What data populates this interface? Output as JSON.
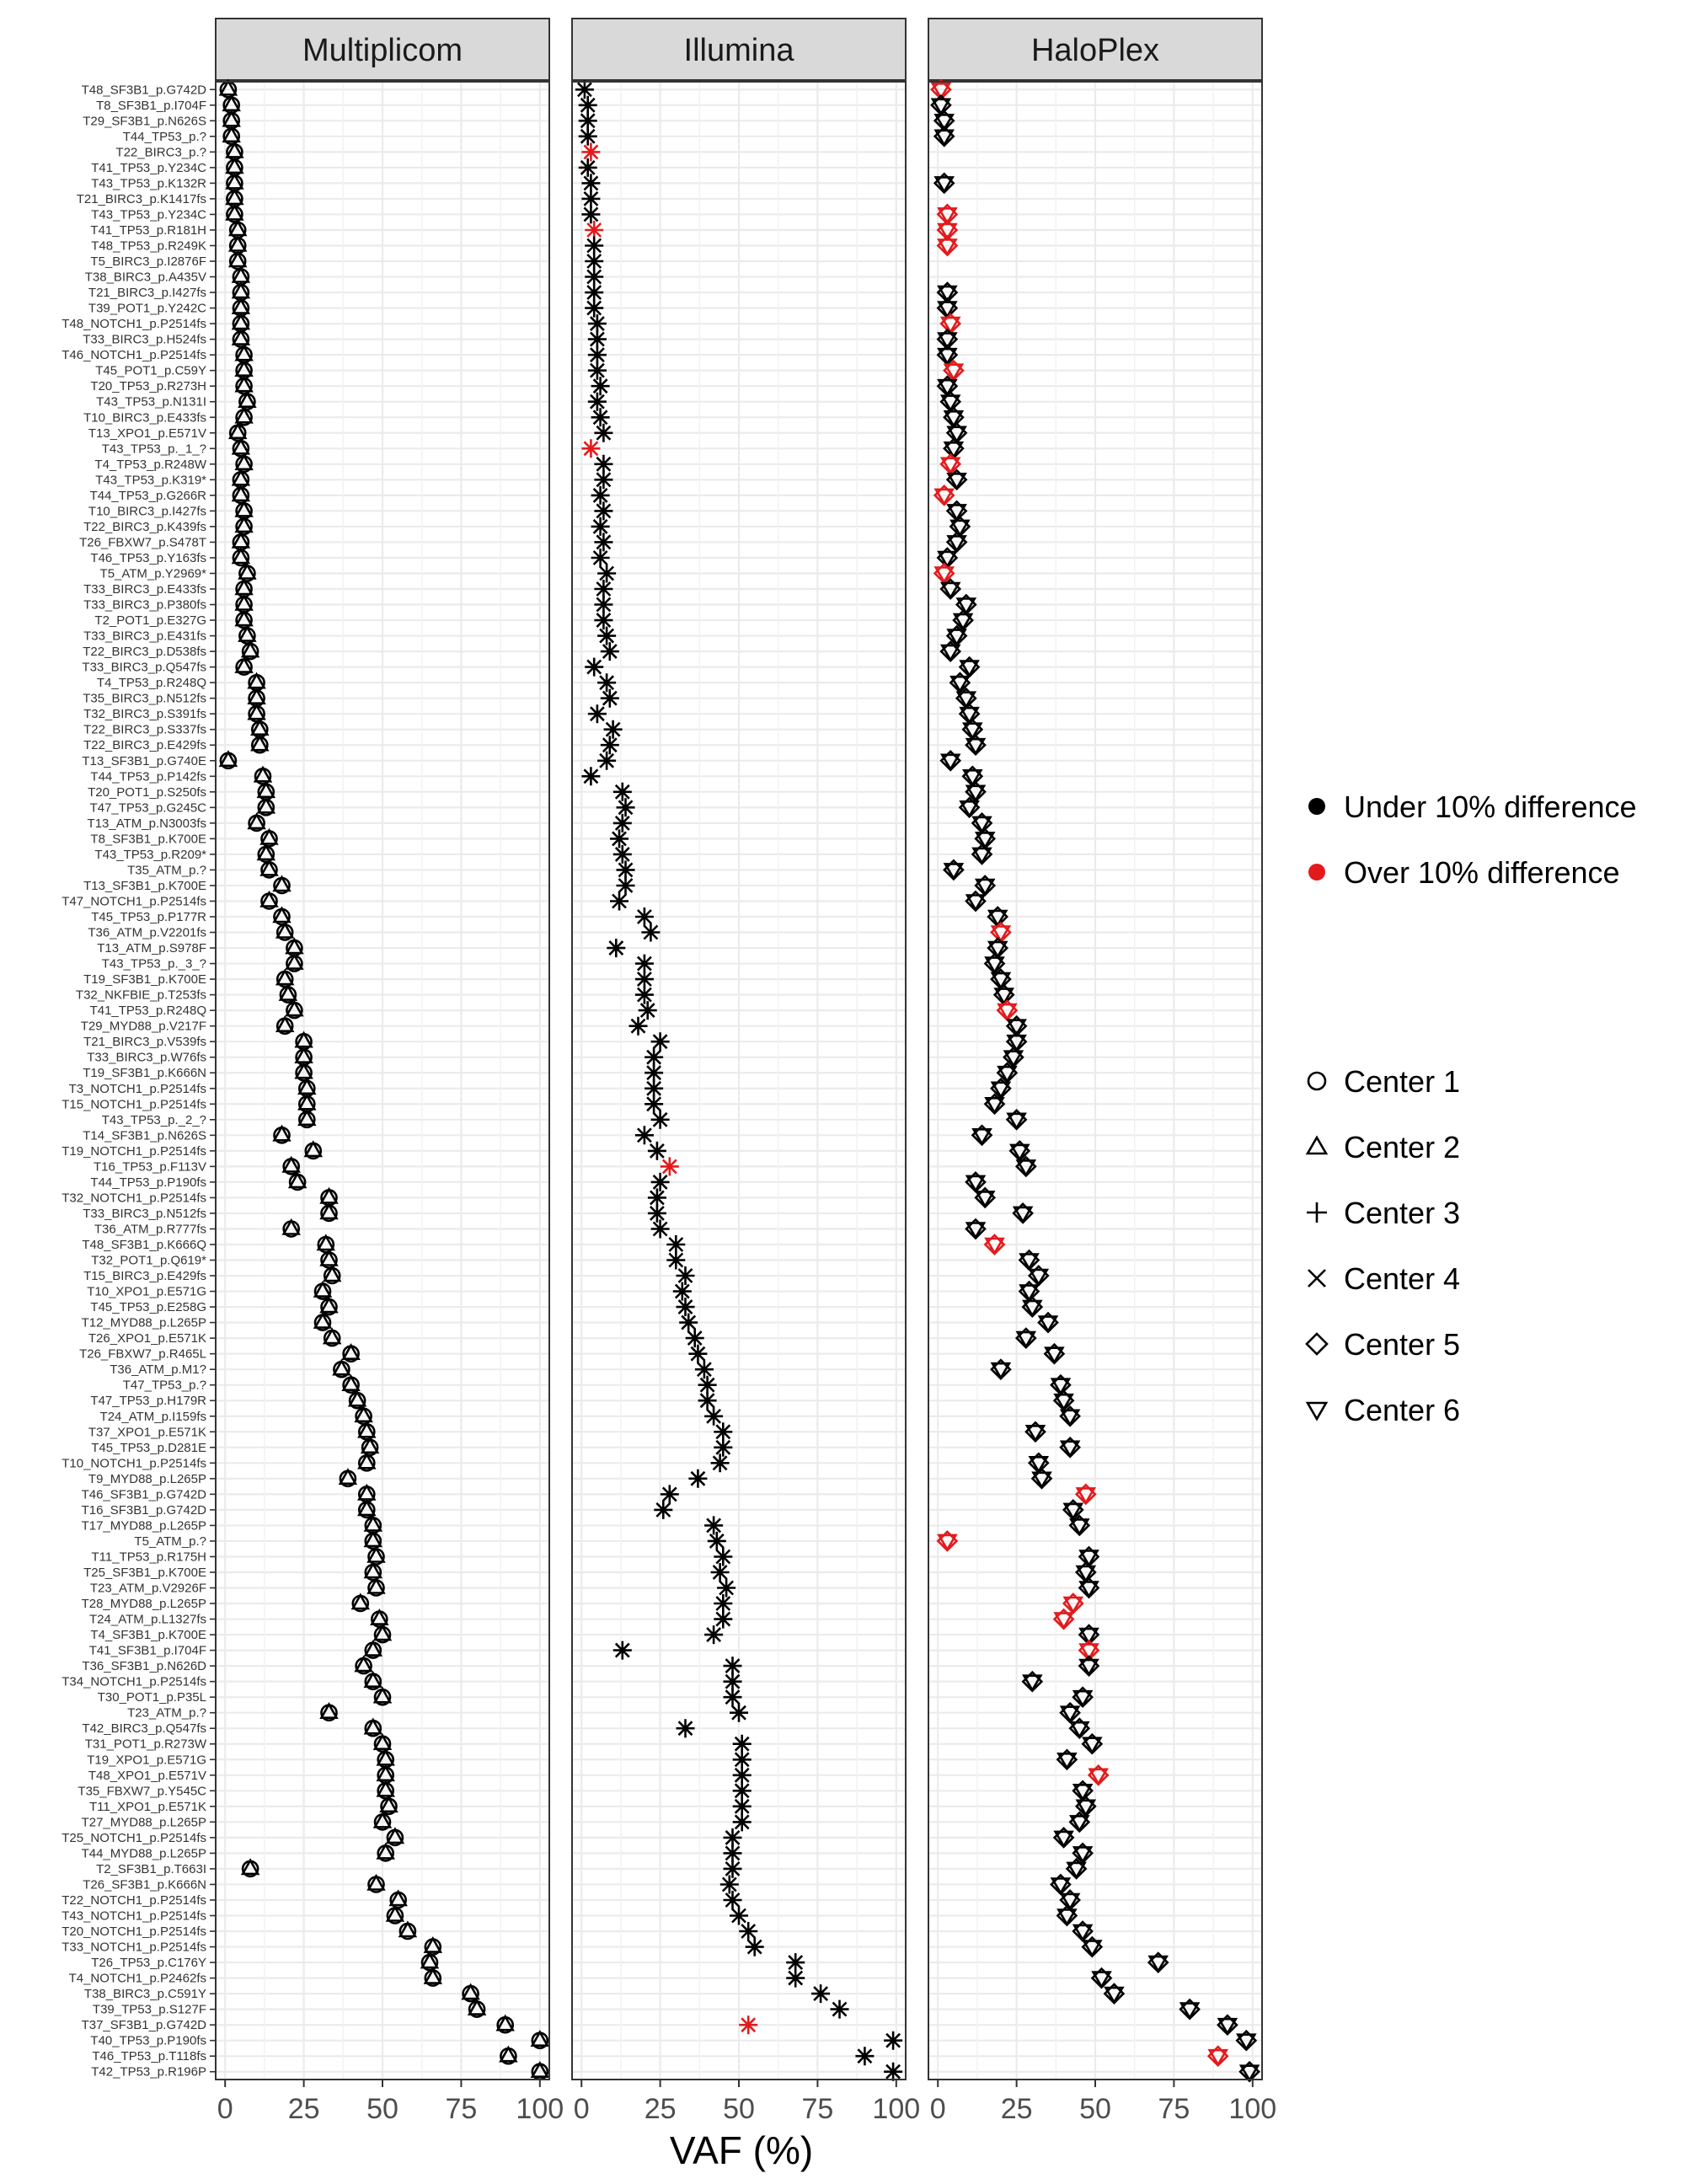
{
  "chart_data": {
    "type": "scatter",
    "panels": [
      "Multiplicom",
      "Illumina",
      "HaloPlex"
    ],
    "xlabel": "VAF (%)",
    "xlim": [
      -3,
      103
    ],
    "xticks": [
      0,
      25,
      50,
      75,
      100
    ],
    "grid": true,
    "legend_position": "right",
    "legend_color": {
      "items": [
        {
          "label": "Under 10% difference",
          "color": "#000000"
        },
        {
          "label": "Over 10% difference",
          "color": "#e31a1c"
        }
      ]
    },
    "legend_shape": {
      "items": [
        {
          "label": "Center 1",
          "shape": "circle"
        },
        {
          "label": "Center 2",
          "shape": "triangle"
        },
        {
          "label": "Center 3",
          "shape": "plus"
        },
        {
          "label": "Center 4",
          "shape": "cross"
        },
        {
          "label": "Center 5",
          "shape": "diamond"
        },
        {
          "label": "Center 6",
          "shape": "triangle-down"
        }
      ]
    },
    "variants": [
      {
        "label": "T48_SF3B1_p.G742D",
        "m": 1,
        "i": 1,
        "h": 1,
        "hr": true
      },
      {
        "label": "T8_SF3B1_p.I704F",
        "m": 2,
        "i": 2,
        "h": 1
      },
      {
        "label": "T29_SF3B1_p.N626S",
        "m": 2,
        "i": 2,
        "h": 2
      },
      {
        "label": "T44_TP53_p.?",
        "m": 2,
        "i": 2,
        "h": 2
      },
      {
        "label": "T22_BIRC3_p.?",
        "m": 3,
        "i": 3,
        "ir": true,
        "h": null
      },
      {
        "label": "T41_TP53_p.Y234C",
        "m": 3,
        "i": 2,
        "h": null
      },
      {
        "label": "T43_TP53_p.K132R",
        "m": 3,
        "i": 3,
        "h": 2
      },
      {
        "label": "T21_BIRC3_p.K1417fs",
        "m": 3,
        "i": 3,
        "h": null
      },
      {
        "label": "T43_TP53_p.Y234C",
        "m": 3,
        "i": 3,
        "h": 3,
        "hr": true
      },
      {
        "label": "T41_TP53_p.R181H",
        "m": 4,
        "i": 4,
        "ir": true,
        "h": 3,
        "hr": true
      },
      {
        "label": "T48_TP53_p.R249K",
        "m": 4,
        "i": 4,
        "h": 3,
        "hr": true
      },
      {
        "label": "T5_BIRC3_p.I2876F",
        "m": 4,
        "i": 4,
        "h": null
      },
      {
        "label": "T38_BIRC3_p.A435V",
        "m": 5,
        "i": 4,
        "h": null
      },
      {
        "label": "T21_BIRC3_p.I427fs",
        "m": 5,
        "i": 4,
        "h": 3
      },
      {
        "label": "T39_POT1_p.Y242C",
        "m": 5,
        "i": 4,
        "h": 3
      },
      {
        "label": "T48_NOTCH1_p.P2514fs",
        "m": 5,
        "i": 5,
        "h": 4,
        "hr": true
      },
      {
        "label": "T33_BIRC3_p.H524fs",
        "m": 5,
        "i": 5,
        "h": 3
      },
      {
        "label": "T46_NOTCH1_p.P2514fs",
        "m": 6,
        "i": 5,
        "h": 3
      },
      {
        "label": "T45_POT1_p.C59Y",
        "m": 6,
        "i": 5,
        "h": 5,
        "hr": true
      },
      {
        "label": "T20_TP53_p.R273H",
        "m": 6,
        "i": 6,
        "h": 3
      },
      {
        "label": "T43_TP53_p.N131I",
        "m": 7,
        "i": 5,
        "h": 4
      },
      {
        "label": "T10_BIRC3_p.E433fs",
        "m": 6,
        "i": 6,
        "h": 5
      },
      {
        "label": "T13_XPO1_p.E571V",
        "m": 4,
        "i": 7,
        "h": 6
      },
      {
        "label": "T43_TP53_p._1_?",
        "m": 5,
        "i": 3,
        "ir": true,
        "h": 5
      },
      {
        "label": "T4_TP53_p.R248W",
        "m": 6,
        "i": 7,
        "h": 4,
        "hr": true
      },
      {
        "label": "T43_TP53_p.K319*",
        "m": 5,
        "i": 7,
        "h": 6
      },
      {
        "label": "T44_TP53_p.G266R",
        "m": 5,
        "i": 6,
        "h": 2,
        "hr": true
      },
      {
        "label": "T10_BIRC3_p.I427fs",
        "m": 6,
        "i": 7,
        "h": 6
      },
      {
        "label": "T22_BIRC3_p.K439fs",
        "m": 6,
        "i": 6,
        "h": 7
      },
      {
        "label": "T26_FBXW7_p.S478T",
        "m": 5,
        "i": 7,
        "h": 6
      },
      {
        "label": "T46_TP53_p.Y163fs",
        "m": 5,
        "i": 6,
        "h": 3
      },
      {
        "label": "T5_ATM_p.Y2969*",
        "m": 7,
        "i": 8,
        "h": 2,
        "hr": true
      },
      {
        "label": "T33_BIRC3_p.E433fs",
        "m": 6,
        "i": 7,
        "h": 4
      },
      {
        "label": "T33_BIRC3_p.P380fs",
        "m": 6,
        "i": 7,
        "h": 9
      },
      {
        "label": "T2_POT1_p.E327G",
        "m": 6,
        "i": 7,
        "h": 8
      },
      {
        "label": "T33_BIRC3_p.E431fs",
        "m": 7,
        "i": 8,
        "h": 6
      },
      {
        "label": "T22_BIRC3_p.D538fs",
        "m": 8,
        "i": 9,
        "h": 4
      },
      {
        "label": "T33_BIRC3_p.Q547fs",
        "m": 6,
        "i": 4,
        "h": 10
      },
      {
        "label": "T4_TP53_p.R248Q",
        "m": 10,
        "i": 8,
        "h": 7
      },
      {
        "label": "T35_BIRC3_p.N512fs",
        "m": 10,
        "i": 9,
        "h": 9
      },
      {
        "label": "T32_BIRC3_p.S391fs",
        "m": 10,
        "i": 5,
        "h": 10
      },
      {
        "label": "T22_BIRC3_p.S337fs",
        "m": 11,
        "i": 10,
        "h": 11
      },
      {
        "label": "T22_BIRC3_p.E429fs",
        "m": 11,
        "i": 9,
        "h": 12
      },
      {
        "label": "T13_SF3B1_p.G740E",
        "m": 1,
        "i": 8,
        "h": 4
      },
      {
        "label": "T44_TP53_p.P142fs",
        "m": 12,
        "i": 3,
        "h": 11
      },
      {
        "label": "T20_POT1_p.S250fs",
        "m": 13,
        "i": 13,
        "h": 12
      },
      {
        "label": "T47_TP53_p.G245C",
        "m": 13,
        "i": 14,
        "h": 10
      },
      {
        "label": "T13_ATM_p.N3003fs",
        "m": 10,
        "i": 13,
        "h": 14
      },
      {
        "label": "T8_SF3B1_p.K700E",
        "m": 14,
        "i": 12,
        "h": 15
      },
      {
        "label": "T43_TP53_p.R209*",
        "m": 13,
        "i": 13,
        "h": 14
      },
      {
        "label": "T35_ATM_p.?",
        "m": 14,
        "i": 14,
        "h": 5
      },
      {
        "label": "T13_SF3B1_p.K700E",
        "m": 18,
        "i": 14,
        "h": 15
      },
      {
        "label": "T47_NOTCH1_p.P2514fs",
        "m": 14,
        "i": 12,
        "h": 12
      },
      {
        "label": "T45_TP53_p.P177R",
        "m": 18,
        "i": 20,
        "h": 19
      },
      {
        "label": "T36_ATM_p.V2201fs",
        "m": 19,
        "i": 22,
        "h": 20,
        "hr": true
      },
      {
        "label": "T13_ATM_p.S978F",
        "m": 22,
        "i": 11,
        "h": 19
      },
      {
        "label": "T43_TP53_p._3_?",
        "m": 22,
        "i": 20,
        "h": 18
      },
      {
        "label": "T19_SF3B1_p.K700E",
        "m": 19,
        "i": 20,
        "h": 20
      },
      {
        "label": "T32_NKFBIE_p.T253fs",
        "m": 20,
        "i": 20,
        "h": 21
      },
      {
        "label": "T41_TP53_p.R248Q",
        "m": 22,
        "i": 21,
        "h": 22,
        "hr": true
      },
      {
        "label": "T29_MYD88_p.V217F",
        "m": 19,
        "i": 18,
        "h": 25
      },
      {
        "label": "T21_BIRC3_p.V539fs",
        "m": 25,
        "i": 25,
        "h": 25
      },
      {
        "label": "T33_BIRC3_p.W76fs",
        "m": 25,
        "i": 23,
        "h": 24
      },
      {
        "label": "T19_SF3B1_p.K666N",
        "m": 25,
        "i": 23,
        "h": 22
      },
      {
        "label": "T3_NOTCH1_p.P2514fs",
        "m": 26,
        "i": 23,
        "h": 20
      },
      {
        "label": "T15_NOTCH1_p.P2514fs",
        "m": 26,
        "i": 23,
        "h": 18
      },
      {
        "label": "T43_TP53_p._2_?",
        "m": 26,
        "i": 25,
        "h": 25
      },
      {
        "label": "T14_SF3B1_p.N626S",
        "m": 18,
        "i": 20,
        "h": 14
      },
      {
        "label": "T19_NOTCH1_p.P2514fs",
        "m": 28,
        "i": 24,
        "h": 26
      },
      {
        "label": "T16_TP53_p.F113V",
        "m": 21,
        "i": 28,
        "ir": true,
        "h": 28
      },
      {
        "label": "T44_TP53_p.P190fs",
        "m": 23,
        "i": 25,
        "h": 12
      },
      {
        "label": "T32_NOTCH1_p.P2514fs",
        "m": 33,
        "i": 24,
        "h": 15
      },
      {
        "label": "T33_BIRC3_p.N512fs",
        "m": 33,
        "i": 24,
        "h": 27
      },
      {
        "label": "T36_ATM_p.R777fs",
        "m": 21,
        "i": 25,
        "h": 12
      },
      {
        "label": "T48_SF3B1_p.K666Q",
        "m": 32,
        "i": 30,
        "h": 18,
        "hr": true
      },
      {
        "label": "T32_POT1_p.Q619*",
        "m": 33,
        "i": 30,
        "h": 29
      },
      {
        "label": "T15_BIRC3_p.E429fs",
        "m": 34,
        "i": 33,
        "h": 32
      },
      {
        "label": "T10_XPO1_p.E571G",
        "m": 31,
        "i": 32,
        "h": 29
      },
      {
        "label": "T45_TP53_p.E258G",
        "m": 33,
        "i": 33,
        "h": 30
      },
      {
        "label": "T12_MYD88_p.L265P",
        "m": 31,
        "i": 34,
        "h": 35
      },
      {
        "label": "T26_XPO1_p.E571K",
        "m": 34,
        "i": 36,
        "h": 28
      },
      {
        "label": "T26_FBXW7_p.R465L",
        "m": 40,
        "i": 37,
        "h": 37
      },
      {
        "label": "T36_ATM_p.M1?",
        "m": 37,
        "i": 39,
        "h": 20
      },
      {
        "label": "T47_TP53_p.?",
        "m": 40,
        "i": 40,
        "h": 39
      },
      {
        "label": "T47_TP53_p.H179R",
        "m": 42,
        "i": 40,
        "h": 40
      },
      {
        "label": "T24_ATM_p.I159fs",
        "m": 44,
        "i": 42,
        "h": 42
      },
      {
        "label": "T37_XPO1_p.E571K",
        "m": 45,
        "i": 45,
        "h": 31
      },
      {
        "label": "T45_TP53_p.D281E",
        "m": 46,
        "i": 45,
        "h": 42
      },
      {
        "label": "T10_NOTCH1_p.P2514fs",
        "m": 45,
        "i": 44,
        "h": 32
      },
      {
        "label": "T9_MYD88_p.L265P",
        "m": 39,
        "i": 37,
        "h": 33
      },
      {
        "label": "T46_SF3B1_p.G742D",
        "m": 45,
        "i": 28,
        "h": 47,
        "hr": true
      },
      {
        "label": "T16_SF3B1_p.G742D",
        "m": 45,
        "i": 26,
        "h": 43
      },
      {
        "label": "T17_MYD88_p.L265P",
        "m": 47,
        "i": 42,
        "h": 45
      },
      {
        "label": "T5_ATM_p.?",
        "m": 47,
        "i": 43,
        "h": 3,
        "hr": true
      },
      {
        "label": "T11_TP53_p.R175H",
        "m": 48,
        "i": 45,
        "h": 48
      },
      {
        "label": "T25_SF3B1_p.K700E",
        "m": 47,
        "i": 44,
        "h": 47
      },
      {
        "label": "T23_ATM_p.V2926F",
        "m": 48,
        "i": 46,
        "h": 48
      },
      {
        "label": "T28_MYD88_p.L265P",
        "m": 43,
        "i": 45,
        "h": 43,
        "hr": true
      },
      {
        "label": "T24_ATM_p.L1327fs",
        "m": 49,
        "i": 45,
        "h": 40,
        "hr": true
      },
      {
        "label": "T4_SF3B1_p.K700E",
        "m": 50,
        "i": 42,
        "h": 48
      },
      {
        "label": "T41_SF3B1_p.I704F",
        "m": 47,
        "i": 13,
        "h": 48,
        "hr": true
      },
      {
        "label": "T36_SF3B1_p.N626D",
        "m": 44,
        "i": 48,
        "h": 48
      },
      {
        "label": "T34_NOTCH1_p.P2514fs",
        "m": 47,
        "i": 48,
        "h": 30
      },
      {
        "label": "T30_POT1_p.P35L",
        "m": 50,
        "i": 48,
        "h": 46
      },
      {
        "label": "T23_ATM_p.?",
        "m": 33,
        "i": 50,
        "h": 42
      },
      {
        "label": "T42_BIRC3_p.Q547fs",
        "m": 47,
        "i": 33,
        "h": 45
      },
      {
        "label": "T31_POT1_p.R273W",
        "m": 50,
        "i": 51,
        "h": 49
      },
      {
        "label": "T19_XPO1_p.E571G",
        "m": 51,
        "i": 51,
        "h": 41
      },
      {
        "label": "T48_XPO1_p.E571V",
        "m": 51,
        "i": 51,
        "h": 51,
        "hr": true
      },
      {
        "label": "T35_FBXW7_p.Y545C",
        "m": 51,
        "i": 51,
        "h": 46
      },
      {
        "label": "T11_XPO1_p.E571K",
        "m": 52,
        "i": 51,
        "h": 47
      },
      {
        "label": "T27_MYD88_p.L265P",
        "m": 50,
        "i": 51,
        "h": 45
      },
      {
        "label": "T25_NOTCH1_p.P2514fs",
        "m": 54,
        "i": 48,
        "h": 40
      },
      {
        "label": "T44_MYD88_p.L265P",
        "m": 51,
        "i": 48,
        "h": 46
      },
      {
        "label": "T2_SF3B1_p.T663I",
        "m": 8,
        "i": 48,
        "h": 44
      },
      {
        "label": "T26_SF3B1_p.K666N",
        "m": 48,
        "i": 47,
        "h": 39
      },
      {
        "label": "T22_NOTCH1_p.P2514fs",
        "m": 55,
        "i": 48,
        "h": 42
      },
      {
        "label": "T43_NOTCH1_p.P2514fs",
        "m": 54,
        "i": 50,
        "h": 41
      },
      {
        "label": "T20_NOTCH1_p.P2514fs",
        "m": 58,
        "i": 53,
        "h": 46
      },
      {
        "label": "T33_NOTCH1_p.P2514fs",
        "m": 66,
        "i": 55,
        "h": 49
      },
      {
        "label": "T26_TP53_p.C176Y",
        "m": 65,
        "i": 68,
        "h": 70
      },
      {
        "label": "T4_NOTCH1_p.P2462fs",
        "m": 66,
        "i": 68,
        "h": 52
      },
      {
        "label": "T38_BIRC3_p.C591Y",
        "m": 78,
        "i": 76,
        "h": 56
      },
      {
        "label": "T39_TP53_p.S127F",
        "m": 80,
        "i": 82,
        "h": 80
      },
      {
        "label": "T37_SF3B1_p.G742D",
        "m": 89,
        "i": 53,
        "ir": true,
        "h": 92
      },
      {
        "label": "T40_TP53_p.P190fs",
        "m": 100,
        "i": 99,
        "h": 98
      },
      {
        "label": "T46_TP53_p.T118fs",
        "m": 90,
        "i": 90,
        "h": 89,
        "hr": true
      },
      {
        "label": "T42_TP53_p.R196P",
        "m": 100,
        "i": 99,
        "h": 99
      }
    ]
  }
}
